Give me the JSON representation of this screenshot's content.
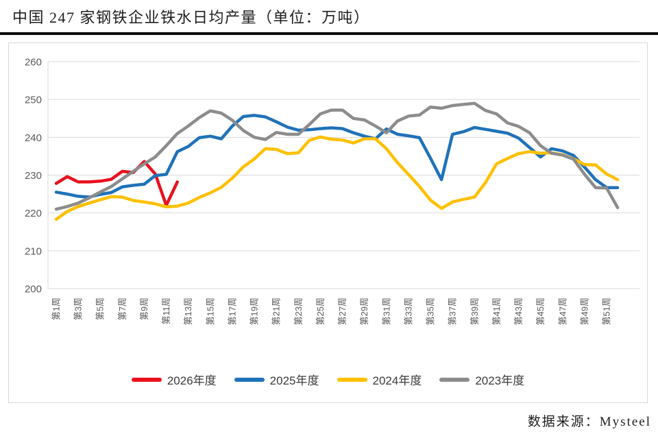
{
  "title": "中国 247 家钢铁企业铁水日均产量（单位：万吨）",
  "source": "数据来源：Mysteel",
  "chart_data": {
    "type": "line",
    "title": "中国 247 家钢铁企业铁水日均产量（单位：万吨）",
    "ylim": [
      200,
      260
    ],
    "y_ticks": [
      200,
      210,
      220,
      230,
      240,
      250,
      260
    ],
    "y_tick_labels": [
      "200",
      "210",
      "220",
      "230",
      "240",
      "250",
      "260"
    ],
    "x_tick_labels": [
      "第1周",
      "第3周",
      "第5周",
      "第7周",
      "第9周",
      "第11周",
      "第13周",
      "第15周",
      "第17周",
      "第19周",
      "第21周",
      "第23周",
      "第25周",
      "第27周",
      "第29周",
      "第31周",
      "第33周",
      "第35周",
      "第37周",
      "第39周",
      "第41周",
      "第43周",
      "第45周",
      "第47周",
      "第49周",
      "第51周"
    ],
    "x_weeks_total": 52,
    "grid": "horizontal",
    "legend_position": "bottom",
    "grid_color": "#d9d9d9",
    "axis_label_color": "#595959",
    "series": [
      {
        "name": "2026年度",
        "color": "#e8101d",
        "start_week": 1,
        "values": [
          227.8,
          229.6,
          228.2,
          228.2,
          228.4,
          228.9,
          231.0,
          230.7,
          233.6,
          230.3,
          222.0,
          228.2
        ]
      },
      {
        "name": "2025年度",
        "color": "#1f72b8",
        "start_week": 1,
        "values": [
          225.5,
          225.0,
          224.4,
          224.2,
          224.9,
          225.4,
          226.9,
          227.3,
          227.6,
          229.9,
          230.2,
          236.2,
          237.6,
          239.9,
          240.3,
          239.6,
          243.0,
          245.5,
          245.8,
          245.4,
          244.1,
          242.7,
          241.9,
          242.0,
          242.3,
          242.5,
          242.3,
          241.2,
          240.3,
          239.6,
          242.2,
          240.8,
          240.4,
          239.9,
          234.5,
          228.8,
          240.8,
          241.5,
          242.6,
          242.1,
          241.6,
          241.1,
          239.8,
          237.3,
          234.8,
          237.0,
          236.4,
          235.2,
          232.1,
          228.8,
          226.7,
          226.7
        ]
      },
      {
        "name": "2024年度",
        "color": "#ffc000",
        "start_week": 1,
        "values": [
          218.3,
          220.4,
          221.7,
          222.6,
          223.5,
          224.3,
          224.2,
          223.3,
          222.9,
          222.4,
          221.6,
          221.8,
          222.6,
          224.1,
          225.3,
          226.8,
          229.2,
          232.2,
          234.3,
          237.0,
          236.8,
          235.7,
          235.9,
          239.2,
          240.1,
          239.5,
          239.3,
          238.5,
          239.6,
          239.6,
          237.0,
          233.3,
          230.2,
          227.0,
          223.4,
          221.2,
          222.9,
          223.6,
          224.2,
          228.0,
          233.0,
          234.4,
          235.7,
          236.2,
          235.8,
          235.9,
          235.4,
          234.3,
          232.8,
          232.7,
          230.3,
          228.8
        ]
      },
      {
        "name": "2023年度",
        "color": "#8c8c8c",
        "start_week": 1,
        "values": [
          221.0,
          221.7,
          222.6,
          224.0,
          225.5,
          227.0,
          229.0,
          231.0,
          233.0,
          234.8,
          237.8,
          241.0,
          243.0,
          245.2,
          247.0,
          246.4,
          244.5,
          241.8,
          240.0,
          239.4,
          241.3,
          240.8,
          240.8,
          243.4,
          246.2,
          247.2,
          247.2,
          245.0,
          244.6,
          243.0,
          241.2,
          244.3,
          245.6,
          245.9,
          248.0,
          247.7,
          248.4,
          248.7,
          249.0,
          247.1,
          246.2,
          243.8,
          242.9,
          241.2,
          237.8,
          235.8,
          235.3,
          234.2,
          230.2,
          226.7,
          226.6,
          221.4
        ]
      }
    ]
  }
}
